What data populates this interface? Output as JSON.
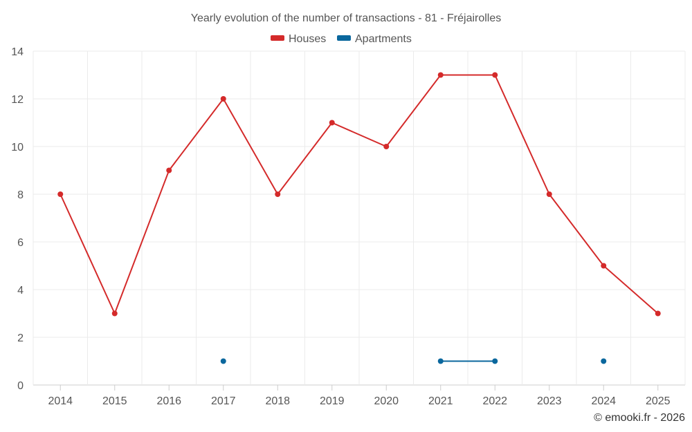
{
  "chart_data": {
    "type": "line",
    "title": "Yearly evolution of the number of transactions - 81 - Fréjairolles",
    "categories": [
      "2014",
      "2015",
      "2016",
      "2017",
      "2018",
      "2019",
      "2020",
      "2021",
      "2022",
      "2023",
      "2024",
      "2025"
    ],
    "ylim": [
      0,
      14
    ],
    "yticks": [
      0,
      2,
      4,
      6,
      8,
      10,
      12,
      14
    ],
    "grid": true,
    "legend_position": "top-center",
    "series": [
      {
        "name": "Houses",
        "color": "#d42a2a",
        "values": [
          8,
          3,
          9,
          12,
          8,
          11,
          10,
          13,
          13,
          8,
          5,
          3
        ]
      },
      {
        "name": "Apartments",
        "color": "#0a679d",
        "values": [
          null,
          null,
          null,
          1,
          null,
          null,
          null,
          1,
          1,
          null,
          1,
          null
        ]
      }
    ]
  },
  "credit": "© emooki.fr - 2026"
}
